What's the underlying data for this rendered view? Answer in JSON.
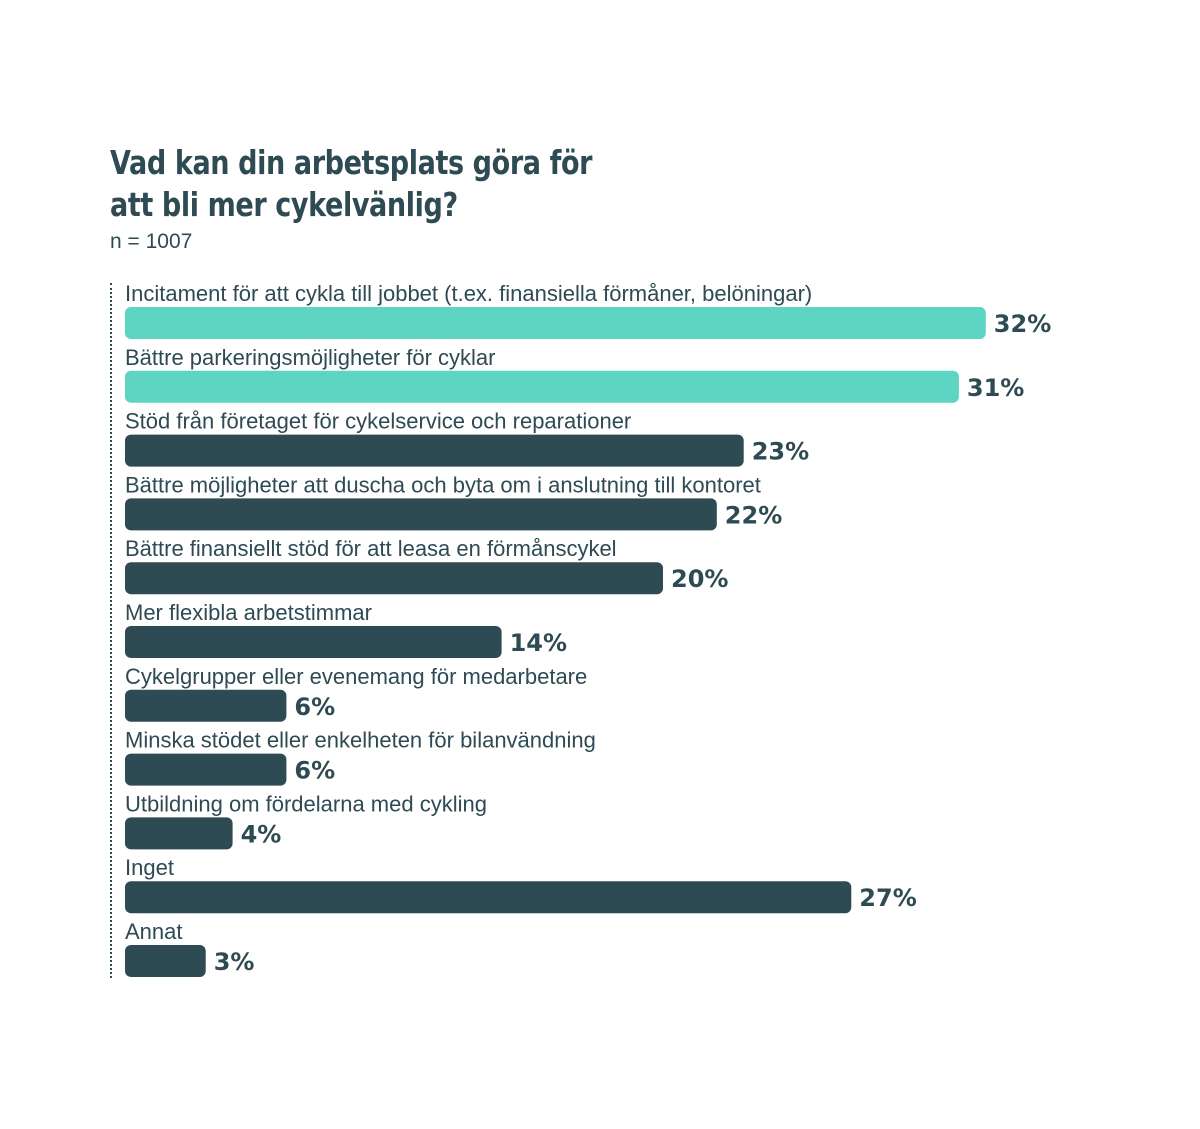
{
  "chart_data": {
    "type": "bar",
    "orientation": "horizontal",
    "title": "Vad kan din arbetsplats göra för att bli mer cykelvänlig?",
    "subtitle": "n = 1007",
    "categories": [
      "Incitament för att cykla till jobbet (t.ex. finansiella förmåner, belöningar)",
      "Bättre parkeringsmöjligheter för cyklar",
      "Stöd från företaget för cykelservice och reparationer",
      "Bättre möjligheter att duscha och byta om i anslutning till kontoret",
      "Bättre finansiellt stöd för att leasa en förmånscykel",
      "Mer flexibla arbetstimmar",
      "Cykelgrupper eller evenemang för medarbetare",
      "Minska stödet eller enkelheten för bilanvändning",
      "Utbildning om fördelarna med cykling",
      "Inget",
      "Annat"
    ],
    "values": [
      32,
      31,
      23,
      22,
      20,
      14,
      6,
      6,
      4,
      27,
      3
    ],
    "value_labels": [
      "32%",
      "31%",
      "23%",
      "22%",
      "20%",
      "14%",
      "6%",
      "6%",
      "4%",
      "27%",
      "3%"
    ],
    "highlight_count": 2,
    "colors": {
      "highlight": "#5ed5c2",
      "default": "#2e4a52",
      "text": "#2e4a52"
    },
    "grid": false,
    "legend": "none"
  }
}
